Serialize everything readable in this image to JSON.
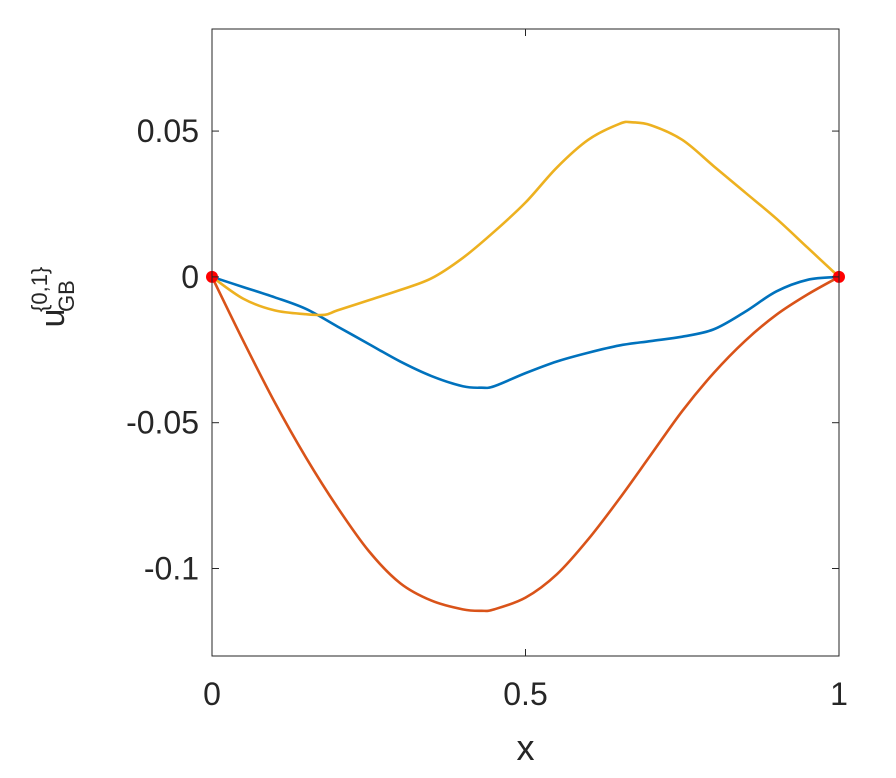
{
  "chart_data": {
    "type": "line",
    "title": "",
    "xlabel": "x",
    "ylabel": {
      "base": "u",
      "superscript": "{0,1}",
      "subscript": "GB"
    },
    "xlim": [
      0,
      1
    ],
    "ylim": [
      -0.13,
      0.085
    ],
    "xticks": [
      0,
      0.5,
      1
    ],
    "xtick_labels": [
      "0",
      "0.5",
      "1"
    ],
    "yticks": [
      -0.1,
      -0.05,
      0,
      0.05
    ],
    "ytick_labels": [
      "-0.1",
      "-0.05",
      "0",
      "0.05"
    ],
    "grid": false,
    "legend": "none",
    "series": [
      {
        "color": "#0072BD",
        "x": [
          0,
          0.05,
          0.1,
          0.15,
          0.2,
          0.25,
          0.3,
          0.35,
          0.4,
          0.43,
          0.45,
          0.5,
          0.55,
          0.6,
          0.65,
          0.7,
          0.75,
          0.8,
          0.85,
          0.9,
          0.95,
          1
        ],
        "y": [
          0,
          -0.0035,
          -0.007,
          -0.011,
          -0.017,
          -0.023,
          -0.029,
          -0.034,
          -0.0375,
          -0.038,
          -0.0375,
          -0.033,
          -0.029,
          -0.026,
          -0.0235,
          -0.022,
          -0.0205,
          -0.018,
          -0.012,
          -0.005,
          -0.001,
          0
        ]
      },
      {
        "color": "#D95319",
        "x": [
          0,
          0.05,
          0.1,
          0.15,
          0.2,
          0.25,
          0.3,
          0.35,
          0.4,
          0.43,
          0.45,
          0.5,
          0.55,
          0.6,
          0.65,
          0.7,
          0.75,
          0.8,
          0.85,
          0.9,
          0.95,
          1
        ],
        "y": [
          0,
          -0.022,
          -0.043,
          -0.062,
          -0.079,
          -0.094,
          -0.105,
          -0.111,
          -0.114,
          -0.1145,
          -0.114,
          -0.11,
          -0.102,
          -0.09,
          -0.076,
          -0.061,
          -0.046,
          -0.033,
          -0.022,
          -0.013,
          -0.006,
          0
        ]
      },
      {
        "color": "#EDB120",
        "x": [
          0,
          0.05,
          0.1,
          0.15,
          0.18,
          0.2,
          0.25,
          0.3,
          0.35,
          0.4,
          0.45,
          0.5,
          0.55,
          0.6,
          0.65,
          0.67,
          0.7,
          0.75,
          0.8,
          0.85,
          0.9,
          0.95,
          1
        ],
        "y": [
          0,
          -0.0075,
          -0.0115,
          -0.0128,
          -0.013,
          -0.0115,
          -0.008,
          -0.0045,
          -0.0005,
          0.0065,
          0.0155,
          0.0255,
          0.0375,
          0.047,
          0.0525,
          0.053,
          0.052,
          0.047,
          0.038,
          0.029,
          0.02,
          0.01,
          0
        ]
      }
    ],
    "markers": {
      "color": "#FF0000",
      "points": [
        {
          "x": 0,
          "y": 0
        },
        {
          "x": 1,
          "y": 0
        }
      ]
    }
  }
}
